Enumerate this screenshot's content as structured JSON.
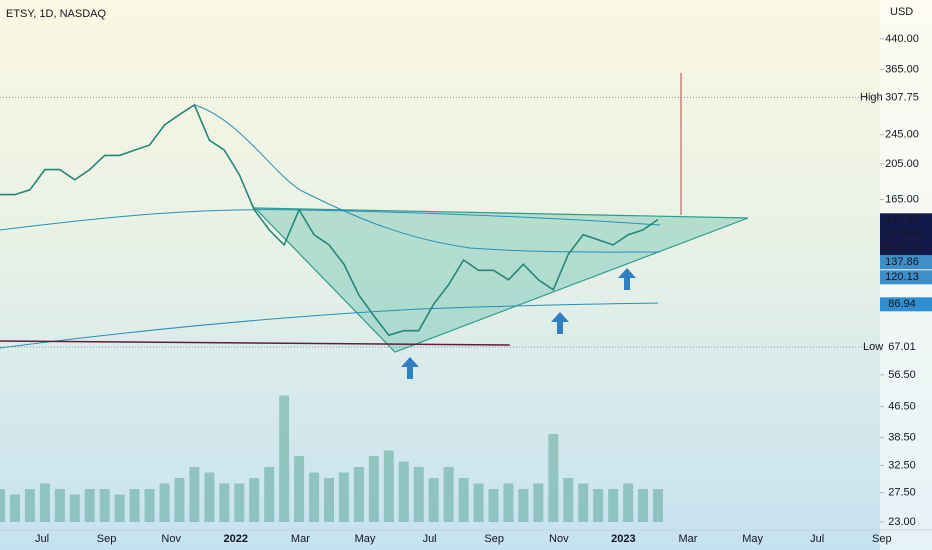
{
  "chart_data": {
    "type": "line",
    "title": "ETSY, 1D, NASDAQ",
    "currency": "USD",
    "log_scale": true,
    "color": "#26867a",
    "ylim": [
      21.9,
      558
    ],
    "yticks": [
      {
        "value": 23,
        "label": "23.00"
      },
      {
        "value": 27.5,
        "label": "27.50"
      },
      {
        "value": 32.5,
        "label": "32.50"
      },
      {
        "value": 38.5,
        "label": "38.50"
      },
      {
        "value": 46.5,
        "label": "46.50"
      },
      {
        "value": 56.5,
        "label": "56.50"
      },
      {
        "value": 165,
        "label": "165.00"
      },
      {
        "value": 205,
        "label": "205.00"
      },
      {
        "value": 245,
        "label": "245.00"
      },
      {
        "value": 365,
        "label": "365.00"
      },
      {
        "value": 440,
        "label": "440.00"
      }
    ],
    "x_labels": [
      "Jul",
      "Sep",
      "Nov",
      "2022",
      "Mar",
      "May",
      "Jul",
      "Sep",
      "Nov",
      "2023",
      "Mar",
      "May",
      "Jul",
      "Sep"
    ],
    "values": [
      170,
      170,
      175,
      198,
      198,
      186,
      198,
      216,
      216,
      223,
      230,
      260,
      277,
      294,
      237,
      223,
      192,
      155,
      137,
      125,
      155,
      133,
      125,
      111,
      92,
      81,
      72,
      74,
      74,
      87,
      98,
      114,
      107,
      107,
      101,
      111,
      101,
      95,
      118,
      133,
      129,
      125,
      133,
      137,
      146
    ],
    "volume": [
      3,
      2.5,
      3,
      3.5,
      3,
      2.5,
      3,
      3,
      2.5,
      3,
      3,
      3.5,
      4,
      5,
      4.5,
      3.5,
      3.5,
      4,
      5,
      11.5,
      6,
      4.5,
      4,
      4.5,
      5,
      6,
      6.5,
      5.5,
      5,
      4,
      5,
      4,
      3.5,
      3,
      3.5,
      3,
      3.5,
      8,
      4,
      3.5,
      3,
      3,
      3.5,
      3,
      3
    ],
    "volume_color": "#5fa89b",
    "high": {
      "label": "High",
      "value": 307.75
    },
    "low": {
      "label": "Low",
      "value": 67.01
    },
    "last": {
      "value": 145.25,
      "change": "-12.65%",
      "countdown": "06:01:29",
      "color": "#131a4a"
    },
    "ma_labels": [
      {
        "value": 137.86,
        "color": "#3d8ec9"
      },
      {
        "value": 120.13,
        "color": "#3d8ec9"
      },
      {
        "value": 86.94,
        "color": "#2f8fd0"
      }
    ]
  }
}
